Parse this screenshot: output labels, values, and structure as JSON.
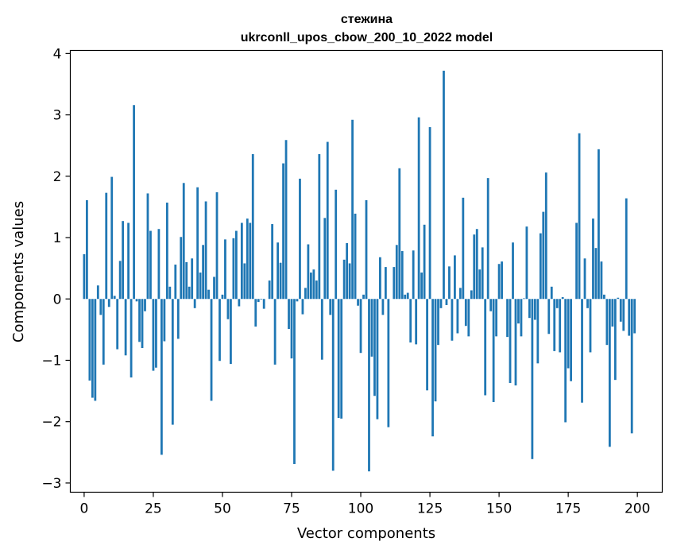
{
  "chart_data": {
    "type": "bar",
    "title_line1": "стежина",
    "title_line2": "ukrconll_upos_cbow_200_10_2022 model",
    "xlabel": "Vector components",
    "ylabel": "Components values",
    "xlim": [
      -5,
      209
    ],
    "ylim": [
      -3.15,
      4.05
    ],
    "xticks": [
      0,
      25,
      50,
      75,
      100,
      125,
      150,
      175,
      200
    ],
    "xtick_labels": [
      "0",
      "25",
      "50",
      "75",
      "100",
      "125",
      "150",
      "175",
      "200"
    ],
    "yticks": [
      -3,
      -2,
      -1,
      0,
      1,
      2,
      3,
      4
    ],
    "ytick_labels": [
      "−3",
      "−2",
      "−1",
      "0",
      "1",
      "2",
      "3",
      "4"
    ],
    "bar_color": "#1f77b4",
    "x": [
      0,
      1,
      2,
      3,
      4,
      5,
      6,
      7,
      8,
      9,
      10,
      11,
      12,
      13,
      14,
      15,
      16,
      17,
      18,
      19,
      20,
      21,
      22,
      23,
      24,
      25,
      26,
      27,
      28,
      29,
      30,
      31,
      32,
      33,
      34,
      35,
      36,
      37,
      38,
      39,
      40,
      41,
      42,
      43,
      44,
      45,
      46,
      47,
      48,
      49,
      50,
      51,
      52,
      53,
      54,
      55,
      56,
      57,
      58,
      59,
      60,
      61,
      62,
      63,
      64,
      65,
      66,
      67,
      68,
      69,
      70,
      71,
      72,
      73,
      74,
      75,
      76,
      77,
      78,
      79,
      80,
      81,
      82,
      83,
      84,
      85,
      86,
      87,
      88,
      89,
      90,
      91,
      92,
      93,
      94,
      95,
      96,
      97,
      98,
      99,
      100,
      101,
      102,
      103,
      104,
      105,
      106,
      107,
      108,
      109,
      110,
      111,
      112,
      113,
      114,
      115,
      116,
      117,
      118,
      119,
      120,
      121,
      122,
      123,
      124,
      125,
      126,
      127,
      128,
      129,
      130,
      131,
      132,
      133,
      134,
      135,
      136,
      137,
      138,
      139,
      140,
      141,
      142,
      143,
      144,
      145,
      146,
      147,
      148,
      149,
      150,
      151,
      152,
      153,
      154,
      155,
      156,
      157,
      158,
      159,
      160,
      161,
      162,
      163,
      164,
      165,
      166,
      167,
      168,
      169,
      170,
      171,
      172,
      173,
      174,
      175,
      176,
      177,
      178,
      179,
      180,
      181,
      182,
      183,
      184,
      185,
      186,
      187,
      188,
      189,
      190,
      191,
      192,
      193,
      194,
      195,
      196,
      197,
      198,
      199
    ],
    "values": [
      0.73,
      1.61,
      -1.33,
      -1.61,
      -1.66,
      0.22,
      -0.26,
      -1.07,
      1.73,
      -0.13,
      1.99,
      0.05,
      -0.82,
      0.62,
      1.27,
      -0.92,
      1.24,
      -1.28,
      3.16,
      -0.04,
      -0.7,
      -0.8,
      -0.2,
      1.72,
      1.11,
      -1.17,
      -1.12,
      1.14,
      -2.54,
      -0.69,
      1.57,
      0.2,
      -2.05,
      0.56,
      -0.65,
      1.01,
      1.89,
      0.6,
      0.2,
      0.66,
      -0.15,
      1.82,
      0.43,
      0.88,
      1.59,
      0.15,
      -1.66,
      0.36,
      1.74,
      -1.01,
      0.07,
      0.97,
      -0.33,
      -1.06,
      0.99,
      1.11,
      -0.12,
      1.24,
      0.58,
      1.31,
      1.24,
      2.36,
      -0.45,
      -0.05,
      -0.01,
      -0.16,
      0.0,
      0.3,
      1.22,
      -1.07,
      0.92,
      0.59,
      2.21,
      2.59,
      -0.49,
      -0.97,
      -2.69,
      -0.04,
      1.96,
      -0.25,
      0.18,
      0.89,
      0.43,
      0.48,
      0.3,
      2.36,
      -0.99,
      1.32,
      2.56,
      -0.26,
      -2.8,
      1.78,
      -1.94,
      -1.95,
      0.64,
      0.91,
      0.58,
      2.92,
      1.39,
      -0.11,
      -0.88,
      0.07,
      1.61,
      -2.81,
      -0.94,
      -1.58,
      -1.96,
      0.68,
      -0.26,
      0.52,
      -2.09,
      0.0,
      0.52,
      0.88,
      2.13,
      0.78,
      0.07,
      0.1,
      -0.71,
      0.79,
      -0.74,
      2.96,
      0.43,
      1.21,
      -1.49,
      2.8,
      -2.24,
      -1.67,
      -0.75,
      -0.15,
      3.72,
      -0.1,
      0.53,
      -0.68,
      0.71,
      -0.56,
      0.18,
      1.65,
      -0.44,
      -0.61,
      0.14,
      1.05,
      1.14,
      0.48,
      0.84,
      -1.57,
      1.97,
      -0.2,
      -1.68,
      -0.61,
      0.57,
      0.61,
      0.0,
      -0.62,
      -1.37,
      0.92,
      -1.41,
      -0.4,
      -0.61,
      0.01,
      1.18,
      -0.31,
      -2.61,
      -0.34,
      -1.05,
      1.07,
      1.42,
      2.06,
      -0.57,
      0.2,
      -0.85,
      -0.15,
      -0.87,
      0.03,
      -2.01,
      -1.13,
      -1.34,
      0.0,
      1.24,
      2.7,
      -1.69,
      0.66,
      -0.15,
      -0.87,
      1.31,
      0.83,
      2.44,
      0.61,
      0.07,
      -0.75,
      -2.41,
      -0.45,
      -1.32,
      0.02,
      -0.37,
      -0.52,
      1.64,
      -0.6,
      -2.19,
      -0.56
    ]
  }
}
